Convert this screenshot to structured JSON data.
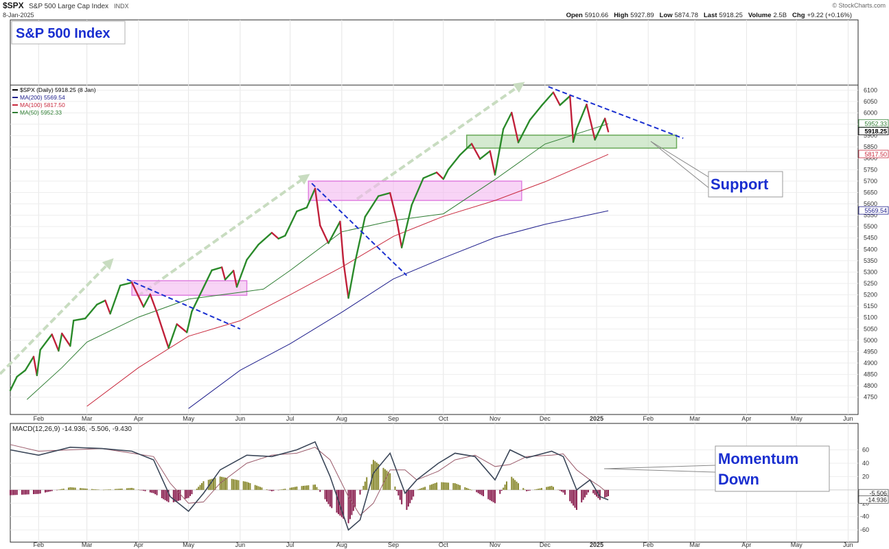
{
  "header": {
    "symbol": "$SPX",
    "name": "S&P 500 Large Cap Index",
    "exchange": "INDX",
    "date": "8-Jan-2025",
    "brand": "© StockCharts.com",
    "stats": [
      {
        "label": "Open",
        "value": "5910.66"
      },
      {
        "label": "High",
        "value": "5927.89"
      },
      {
        "label": "Low",
        "value": "5874.78"
      },
      {
        "label": "Last",
        "value": "5918.25"
      },
      {
        "label": "Volume",
        "value": "2.5B"
      },
      {
        "label": "Chg",
        "value": "+9.22 (+0.16%)"
      }
    ]
  },
  "colors": {
    "price_up": "#2a8a2a",
    "price_down": "#c0203a",
    "ma200": "#1e1e8c",
    "ma100": "#c8283c",
    "ma50": "#2e7d32",
    "trend_line": "#1a2fd0",
    "up_arrow": "#c8dcc0",
    "resistance_box": "#f4b8f0",
    "support_box": "#b8dcb0",
    "macd_line": "#3a4658",
    "macd_signal": "#9a5a6a",
    "hist_pos": "#8a8a30",
    "hist_neg": "#8a2050",
    "callout_text": "#1a2fd0"
  },
  "title_box": "S&P 500 Index",
  "annotations": {
    "support": "Support",
    "momentum_1": "Momentum",
    "momentum_2": "Down"
  },
  "chart_data": [
    {
      "type": "line",
      "legend": [
        {
          "label": "$SPX (Daily) 5918.25 (8 Jan)",
          "color": "#000000"
        },
        {
          "label": "MA(200) 5569.54",
          "color": "#1e1e8c"
        },
        {
          "label": "MA(100) 5817.50",
          "color": "#c8283c"
        },
        {
          "label": "MA(50) 5952.33",
          "color": "#2e7d32"
        }
      ],
      "xlim": [
        "2024-01-15",
        "2025-06-07"
      ],
      "ylim": [
        4710,
        6110
      ],
      "yticks": [
        4750,
        4800,
        4850,
        4900,
        4950,
        5000,
        5050,
        5100,
        5150,
        5200,
        5250,
        5300,
        5350,
        5400,
        5450,
        5500,
        5550,
        5600,
        5650,
        5700,
        5750,
        5800,
        5850,
        5900,
        5950,
        6000,
        6050,
        6100
      ],
      "month_ticks": [
        {
          "date": "2024-02-01",
          "label": "Feb"
        },
        {
          "date": "2024-03-01",
          "label": "Mar"
        },
        {
          "date": "2024-04-01",
          "label": "Apr"
        },
        {
          "date": "2024-05-01",
          "label": "May"
        },
        {
          "date": "2024-06-01",
          "label": "Jun"
        },
        {
          "date": "2024-07-01",
          "label": "Jul"
        },
        {
          "date": "2024-08-01",
          "label": "Aug"
        },
        {
          "date": "2024-09-01",
          "label": "Sep"
        },
        {
          "date": "2024-10-01",
          "label": "Oct"
        },
        {
          "date": "2024-11-01",
          "label": "Nov"
        },
        {
          "date": "2024-12-01",
          "label": "Dec"
        },
        {
          "date": "2025-01-01",
          "label": "2025"
        },
        {
          "date": "2025-02-01",
          "label": "Feb"
        },
        {
          "date": "2025-03-01",
          "label": "Mar"
        },
        {
          "date": "2025-04-01",
          "label": "Apr"
        },
        {
          "date": "2025-05-01",
          "label": "May"
        },
        {
          "date": "2025-06-01",
          "label": "Jun"
        }
      ],
      "price_labels": [
        {
          "value": 5952.33,
          "label": "5952.33",
          "color": "#2e7d32"
        },
        {
          "value": 5918.25,
          "label": "5918.25",
          "color": "#000000"
        },
        {
          "value": 5817.5,
          "label": "5817.50",
          "color": "#c8283c"
        },
        {
          "value": 5569.54,
          "label": "5569.54",
          "color": "#1e1e8c"
        }
      ],
      "series": [
        {
          "name": "$SPX (Daily)",
          "points": [
            [
              "2024-01-15",
              4780
            ],
            [
              "2024-01-19",
              4840
            ],
            [
              "2024-01-24",
              4868
            ],
            [
              "2024-01-29",
              4928
            ],
            [
              "2024-01-31",
              4846
            ],
            [
              "2024-02-02",
              4958
            ],
            [
              "2024-02-09",
              5026
            ],
            [
              "2024-02-13",
              4954
            ],
            [
              "2024-02-15",
              5030
            ],
            [
              "2024-02-20",
              4975
            ],
            [
              "2024-02-22",
              5087
            ],
            [
              "2024-02-29",
              5096
            ],
            [
              "2024-03-07",
              5157
            ],
            [
              "2024-03-12",
              5175
            ],
            [
              "2024-03-15",
              5117
            ],
            [
              "2024-03-21",
              5241
            ],
            [
              "2024-03-28",
              5254
            ],
            [
              "2024-04-04",
              5147
            ],
            [
              "2024-04-08",
              5202
            ],
            [
              "2024-04-12",
              5123
            ],
            [
              "2024-04-19",
              4967
            ],
            [
              "2024-04-24",
              5071
            ],
            [
              "2024-04-30",
              5035
            ],
            [
              "2024-05-03",
              5127
            ],
            [
              "2024-05-15",
              5308
            ],
            [
              "2024-05-21",
              5321
            ],
            [
              "2024-05-23",
              5267
            ],
            [
              "2024-05-28",
              5306
            ],
            [
              "2024-05-30",
              5235
            ],
            [
              "2024-06-05",
              5354
            ],
            [
              "2024-06-12",
              5421
            ],
            [
              "2024-06-20",
              5473
            ],
            [
              "2024-06-24",
              5447
            ],
            [
              "2024-06-28",
              5460
            ],
            [
              "2024-07-05",
              5567
            ],
            [
              "2024-07-11",
              5584
            ],
            [
              "2024-07-16",
              5667
            ],
            [
              "2024-07-19",
              5505
            ],
            [
              "2024-07-24",
              5427
            ],
            [
              "2024-07-31",
              5522
            ],
            [
              "2024-08-02",
              5346
            ],
            [
              "2024-08-05",
              5186
            ],
            [
              "2024-08-09",
              5344
            ],
            [
              "2024-08-15",
              5543
            ],
            [
              "2024-08-23",
              5634
            ],
            [
              "2024-08-30",
              5648
            ],
            [
              "2024-09-03",
              5528
            ],
            [
              "2024-09-06",
              5408
            ],
            [
              "2024-09-12",
              5595
            ],
            [
              "2024-09-19",
              5713
            ],
            [
              "2024-09-27",
              5738
            ],
            [
              "2024-10-01",
              5709
            ],
            [
              "2024-10-04",
              5751
            ],
            [
              "2024-10-11",
              5815
            ],
            [
              "2024-10-18",
              5864
            ],
            [
              "2024-10-23",
              5797
            ],
            [
              "2024-10-29",
              5832
            ],
            [
              "2024-11-01",
              5728
            ],
            [
              "2024-11-06",
              5929
            ],
            [
              "2024-11-11",
              6001
            ],
            [
              "2024-11-15",
              5870
            ],
            [
              "2024-11-22",
              5969
            ],
            [
              "2024-11-29",
              6032
            ],
            [
              "2024-12-06",
              6090
            ],
            [
              "2024-12-10",
              6034
            ],
            [
              "2024-12-16",
              6074
            ],
            [
              "2024-12-18",
              5872
            ],
            [
              "2024-12-20",
              5930
            ],
            [
              "2024-12-26",
              6037
            ],
            [
              "2024-12-31",
              5882
            ],
            [
              "2025-01-06",
              5975
            ],
            [
              "2025-01-08",
              5918
            ]
          ]
        },
        {
          "name": "MA(200)",
          "points": [
            [
              "2024-05-01",
              4700
            ],
            [
              "2024-06-01",
              4868
            ],
            [
              "2024-07-01",
              4985
            ],
            [
              "2024-08-01",
              5123
            ],
            [
              "2024-09-01",
              5270
            ],
            [
              "2024-10-01",
              5362
            ],
            [
              "2024-11-01",
              5452
            ],
            [
              "2024-12-01",
              5510
            ],
            [
              "2025-01-08",
              5569.54
            ]
          ]
        },
        {
          "name": "MA(100)",
          "points": [
            [
              "2024-03-01",
              4710
            ],
            [
              "2024-04-01",
              4880
            ],
            [
              "2024-05-01",
              5018
            ],
            [
              "2024-06-01",
              5086
            ],
            [
              "2024-07-01",
              5200
            ],
            [
              "2024-08-01",
              5322
            ],
            [
              "2024-09-01",
              5457
            ],
            [
              "2024-10-01",
              5545
            ],
            [
              "2024-11-01",
              5615
            ],
            [
              "2024-12-01",
              5697
            ],
            [
              "2025-01-08",
              5817.5
            ]
          ]
        },
        {
          "name": "MA(50)",
          "points": [
            [
              "2024-01-25",
              4740
            ],
            [
              "2024-02-15",
              4880
            ],
            [
              "2024-03-01",
              4992
            ],
            [
              "2024-04-01",
              5102
            ],
            [
              "2024-05-01",
              5181
            ],
            [
              "2024-06-01",
              5211
            ],
            [
              "2024-06-15",
              5225
            ],
            [
              "2024-07-01",
              5307
            ],
            [
              "2024-08-01",
              5477
            ],
            [
              "2024-09-01",
              5527
            ],
            [
              "2024-10-01",
              5556
            ],
            [
              "2024-11-01",
              5707
            ],
            [
              "2024-12-01",
              5863
            ],
            [
              "2025-01-08",
              5952.33
            ]
          ]
        }
      ]
    },
    {
      "type": "line",
      "title": "MACD(12,26,9) -14.936, -5.506, -9.430",
      "ylim": [
        -66,
        76
      ],
      "yticks": [
        60,
        40,
        20,
        0,
        -20,
        -40,
        -60
      ],
      "ytick_labels": [
        "60",
        "40",
        "20",
        "",
        "-20",
        "-40",
        "-60"
      ],
      "value_labels": [
        {
          "value": -5.506,
          "label": "-5.506"
        },
        {
          "value": -14.936,
          "label": "-14.936"
        }
      ],
      "series": [
        {
          "name": "MACD",
          "points": [
            [
              "2024-01-15",
              60
            ],
            [
              "2024-02-01",
              52
            ],
            [
              "2024-02-20",
              64
            ],
            [
              "2024-03-10",
              62
            ],
            [
              "2024-03-28",
              58
            ],
            [
              "2024-04-10",
              45
            ],
            [
              "2024-04-20",
              -10
            ],
            [
              "2024-05-01",
              -32
            ],
            [
              "2024-05-10",
              -5
            ],
            [
              "2024-05-20",
              30
            ],
            [
              "2024-06-05",
              52
            ],
            [
              "2024-06-20",
              50
            ],
            [
              "2024-07-05",
              60
            ],
            [
              "2024-07-16",
              72
            ],
            [
              "2024-07-25",
              20
            ],
            [
              "2024-08-05",
              -60
            ],
            [
              "2024-08-12",
              -45
            ],
            [
              "2024-08-20",
              25
            ],
            [
              "2024-08-30",
              55
            ],
            [
              "2024-09-08",
              -5
            ],
            [
              "2024-09-15",
              15
            ],
            [
              "2024-09-28",
              40
            ],
            [
              "2024-10-08",
              55
            ],
            [
              "2024-10-20",
              50
            ],
            [
              "2024-11-01",
              15
            ],
            [
              "2024-11-10",
              60
            ],
            [
              "2024-11-20",
              48
            ],
            [
              "2024-12-05",
              58
            ],
            [
              "2024-12-12",
              50
            ],
            [
              "2024-12-20",
              0
            ],
            [
              "2024-12-28",
              15
            ],
            [
              "2025-01-03",
              -10
            ],
            [
              "2025-01-08",
              -14.936
            ]
          ]
        },
        {
          "name": "Signal",
          "points": [
            [
              "2024-01-15",
              68
            ],
            [
              "2024-02-01",
              58
            ],
            [
              "2024-02-20",
              60
            ],
            [
              "2024-03-10",
              62
            ],
            [
              "2024-03-28",
              55
            ],
            [
              "2024-04-10",
              50
            ],
            [
              "2024-04-20",
              10
            ],
            [
              "2024-05-01",
              -20
            ],
            [
              "2024-05-10",
              -18
            ],
            [
              "2024-05-20",
              10
            ],
            [
              "2024-06-05",
              40
            ],
            [
              "2024-06-20",
              52
            ],
            [
              "2024-07-05",
              55
            ],
            [
              "2024-07-16",
              64
            ],
            [
              "2024-07-25",
              45
            ],
            [
              "2024-08-05",
              -10
            ],
            [
              "2024-08-12",
              -38
            ],
            [
              "2024-08-20",
              -20
            ],
            [
              "2024-08-30",
              30
            ],
            [
              "2024-09-08",
              30
            ],
            [
              "2024-09-15",
              15
            ],
            [
              "2024-09-28",
              28
            ],
            [
              "2024-10-08",
              45
            ],
            [
              "2024-10-20",
              52
            ],
            [
              "2024-11-01",
              35
            ],
            [
              "2024-11-10",
              38
            ],
            [
              "2024-11-20",
              50
            ],
            [
              "2024-12-05",
              52
            ],
            [
              "2024-12-12",
              54
            ],
            [
              "2024-12-20",
              30
            ],
            [
              "2024-12-28",
              15
            ],
            [
              "2025-01-03",
              5
            ],
            [
              "2025-01-08",
              -5.506
            ]
          ]
        }
      ]
    }
  ]
}
